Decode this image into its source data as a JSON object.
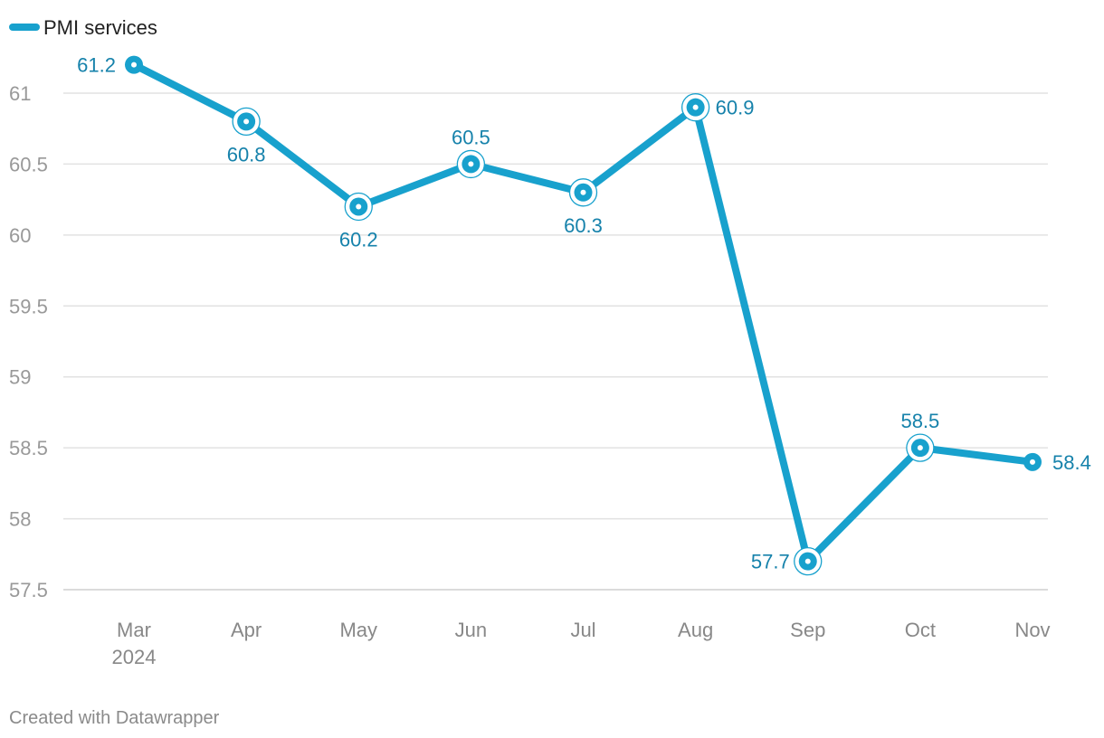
{
  "chart_data": {
    "type": "line",
    "categories": [
      "Mar",
      "Apr",
      "May",
      "Jun",
      "Jul",
      "Aug",
      "Sep",
      "Oct",
      "Nov"
    ],
    "x_sublabels": [
      "2024",
      "",
      "",
      "",
      "",
      "",
      "",
      "",
      ""
    ],
    "series": [
      {
        "name": "PMI services",
        "values": [
          61.2,
          60.8,
          60.2,
          60.5,
          60.3,
          60.9,
          57.7,
          58.5,
          58.4
        ],
        "color": "#18a1cd"
      }
    ],
    "data_labels": [
      "61.2",
      "60.8",
      "60.2",
      "60.5",
      "60.3",
      "60.9",
      "57.7",
      "58.5",
      "58.4"
    ],
    "yticks": [
      {
        "value": 61,
        "label": "61"
      },
      {
        "value": 60.5,
        "label": "60.5"
      },
      {
        "value": 60,
        "label": "60"
      },
      {
        "value": 59.5,
        "label": "59.5"
      },
      {
        "value": 59,
        "label": "59"
      },
      {
        "value": 58.5,
        "label": "58.5"
      },
      {
        "value": 58,
        "label": "58"
      },
      {
        "value": 57.5,
        "label": "57.5"
      }
    ],
    "ylim": [
      57.5,
      61.2
    ],
    "grid": true,
    "legend_position": "top-left",
    "label_color": "#1682ab"
  },
  "footer": {
    "credit": "Created with Datawrapper"
  }
}
